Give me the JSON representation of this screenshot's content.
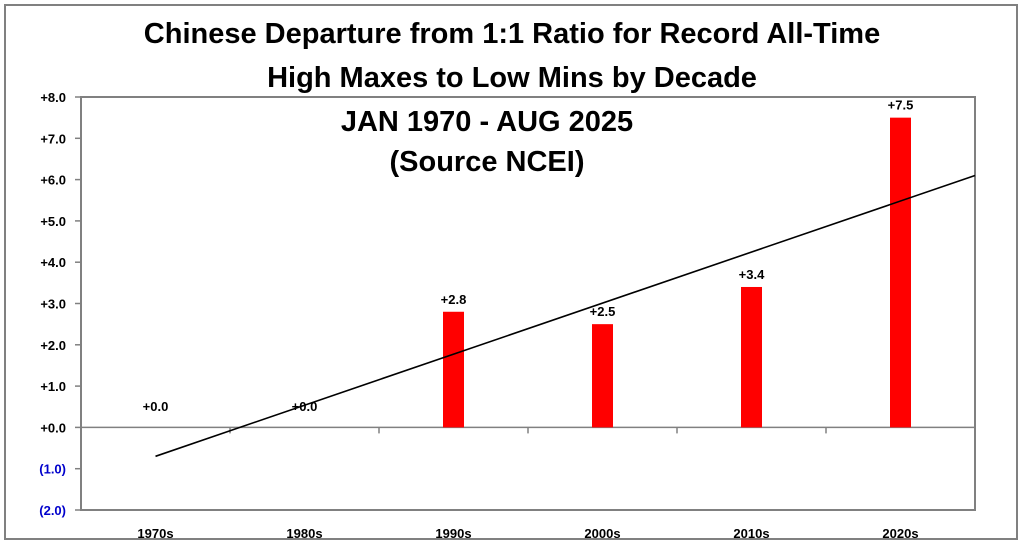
{
  "chart_data": {
    "type": "bar",
    "title": "Chinese Departure from 1:1 Ratio for Record All-Time High Maxes to Low Mins by Decade",
    "title_lines": [
      "Chinese Departure from 1:1 Ratio for Record All-Time",
      "High Maxes to Low Mins by Decade"
    ],
    "subtitle_lines": [
      "JAN 1970 - AUG 2025",
      "(Source NCEI)"
    ],
    "categories": [
      "1970s",
      "1980s",
      "1990s",
      "2000s",
      "2010s",
      "2020s"
    ],
    "values": [
      0.0,
      0.0,
      2.8,
      2.5,
      3.4,
      7.5
    ],
    "data_labels": [
      "+0.0",
      "+0.0",
      "+2.8",
      "+2.5",
      "+3.4",
      "+7.5"
    ],
    "y_ticks": [
      8,
      7,
      6,
      5,
      4,
      3,
      2,
      1,
      0,
      -1,
      -2
    ],
    "y_tick_labels": [
      "+8.0",
      "+7.0",
      "+6.0",
      "+5.0",
      "+4.0",
      "+3.0",
      "+2.0",
      "+1.0",
      "+0.0",
      "(1.0)",
      "(2.0)"
    ],
    "ylim": [
      -2,
      8
    ],
    "xlabel": "",
    "ylabel": "",
    "trendline": {
      "start": [
        0,
        -0.7
      ],
      "end": [
        5.5,
        6.1
      ]
    },
    "colors": {
      "bar": "#ff0000",
      "negative_tick": "#0000cc",
      "axis": "#808080",
      "trend": "#000000"
    },
    "grid": false,
    "legend": "none"
  }
}
